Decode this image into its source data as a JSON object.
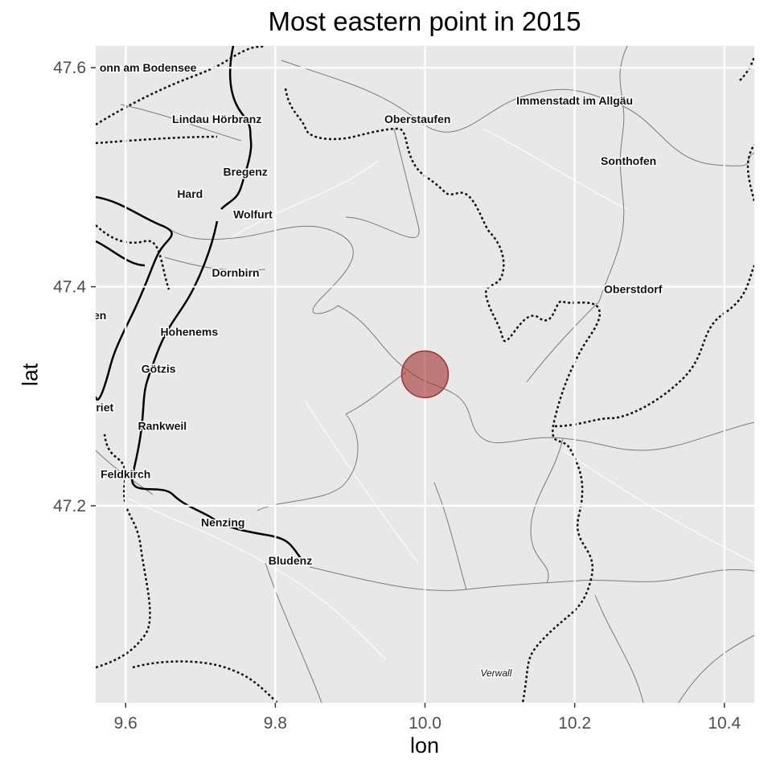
{
  "title": "Most eastern point in 2015",
  "axes": {
    "x_label": "lon",
    "y_label": "lat",
    "x_ticks": [
      "9.6",
      "9.8",
      "10.0",
      "10.2",
      "10.4"
    ],
    "y_ticks": [
      "47.6",
      "47.4",
      "47.2"
    ]
  },
  "chart_data": {
    "type": "scatter",
    "title": "Most eastern point in 2015",
    "xlabel": "lon",
    "ylabel": "lat",
    "xlim": [
      9.56,
      10.44
    ],
    "ylim": [
      47.02,
      47.62
    ],
    "x_ticks": [
      9.6,
      9.8,
      10.0,
      10.2,
      10.4
    ],
    "y_ticks": [
      47.2,
      47.4,
      47.6
    ],
    "grid": true,
    "points": [
      {
        "lon": 10.0,
        "lat": 47.32
      }
    ],
    "point_color": "#a0302e",
    "basemap": "toner-lite"
  },
  "map": {
    "background": "#e8e8e8",
    "places": [
      {
        "name": "onn am Bodensee",
        "lon": 9.63,
        "lat": 47.6
      },
      {
        "name": "Lindau Hörbranz",
        "lon": 9.722,
        "lat": 47.553
      },
      {
        "name": "Oberstaufen",
        "lon": 9.99,
        "lat": 47.553
      },
      {
        "name": "Immenstadt im Allgäu",
        "lon": 10.2,
        "lat": 47.57
      },
      {
        "name": "Sonthofen",
        "lon": 10.272,
        "lat": 47.515
      },
      {
        "name": "Bregenz",
        "lon": 9.76,
        "lat": 47.505
      },
      {
        "name": "Hard",
        "lon": 9.686,
        "lat": 47.485
      },
      {
        "name": "Wolfurt",
        "lon": 9.77,
        "lat": 47.466
      },
      {
        "name": "Dornbirn",
        "lon": 9.747,
        "lat": 47.413
      },
      {
        "name": "Oberstdorf",
        "lon": 10.278,
        "lat": 47.398
      },
      {
        "name": "ten",
        "lon": 9.563,
        "lat": 47.374
      },
      {
        "name": "Hohenems",
        "lon": 9.685,
        "lat": 47.359
      },
      {
        "name": "Götzis",
        "lon": 9.644,
        "lat": 47.325
      },
      {
        "name": "erriet",
        "lon": 9.565,
        "lat": 47.29
      },
      {
        "name": "Rankweil",
        "lon": 9.649,
        "lat": 47.273
      },
      {
        "name": "Feldkirch",
        "lon": 9.6,
        "lat": 47.229
      },
      {
        "name": "Nenzing",
        "lon": 9.73,
        "lat": 47.185
      },
      {
        "name": "Bludenz",
        "lon": 9.82,
        "lat": 47.15
      },
      {
        "name": "Verwall",
        "lon": 10.095,
        "lat": 47.048,
        "italic": true
      }
    ]
  }
}
